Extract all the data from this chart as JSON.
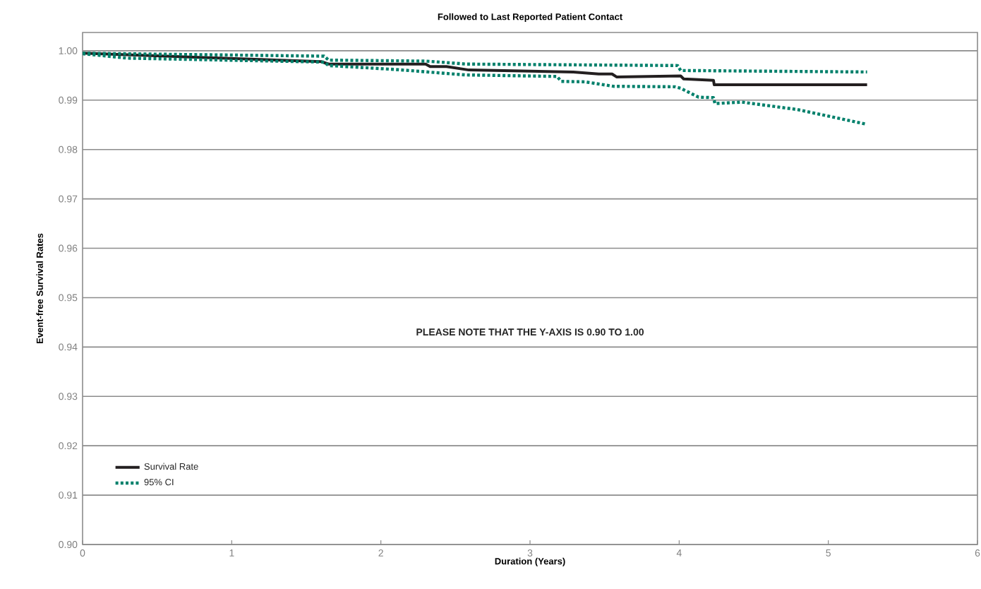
{
  "chart_data": {
    "type": "line",
    "title": "Followed to Last Reported Patient Contact",
    "xlabel": "Duration (Years)",
    "ylabel": "Event-free Survival Rates",
    "annotations": [
      "PLEASE NOTE THAT THE Y-AXIS IS 0.90 TO 1.00"
    ],
    "xlim": [
      0,
      6
    ],
    "xticks": [
      0,
      1,
      2,
      3,
      4,
      5,
      6
    ],
    "ylim": [
      0.9,
      1.0037
    ],
    "yticks": [
      {
        "value": 0.9,
        "label": "0.90"
      },
      {
        "value": 0.91,
        "label": "0.91"
      },
      {
        "value": 0.92,
        "label": "0.92"
      },
      {
        "value": 0.93,
        "label": "0.93"
      },
      {
        "value": 0.94,
        "label": "0.94"
      },
      {
        "value": 0.95,
        "label": "0.95"
      },
      {
        "value": 0.96,
        "label": "0.96"
      },
      {
        "value": 0.97,
        "label": "0.97"
      },
      {
        "value": 0.98,
        "label": "0.98"
      },
      {
        "value": 0.99,
        "label": "0.99"
      },
      {
        "value": 1.0,
        "label": "1.00"
      }
    ],
    "grid": "y",
    "legend": "bottom left",
    "series": [
      {
        "name": "Survival Rate",
        "color": "#231f20",
        "line_style": "solid",
        "x": [
          0,
          1.6,
          1.65,
          2.3,
          2.33,
          2.44,
          2.59,
          3.29,
          3.46,
          3.55,
          3.58,
          4.01,
          4.03,
          4.23,
          4.235,
          5.26
        ],
        "values": [
          0.9995,
          0.9978,
          0.9973,
          0.9973,
          0.9968,
          0.9968,
          0.9961,
          0.9957,
          0.9953,
          0.9953,
          0.9947,
          0.9949,
          0.9943,
          0.994,
          0.9931,
          0.9931
        ]
      },
      {
        "name": "95% CI",
        "color": "#00806b",
        "line_style": "dotted",
        "x": [
          0,
          1.62,
          1.65,
          2.3,
          2.4,
          2.57,
          3.99,
          4.01,
          5.26
        ],
        "values": [
          0.9995,
          0.9989,
          0.9981,
          0.9979,
          0.9977,
          0.9973,
          0.997,
          0.996,
          0.9957
        ]
      },
      {
        "color": "#00806b",
        "line_style": "dotted",
        "x": [
          0,
          0.3,
          1.62,
          1.65,
          2.1,
          2.57,
          3.18,
          3.21,
          3.37,
          3.56,
          3.97,
          4.01,
          4.13,
          4.23,
          4.24,
          4.42,
          4.79,
          5.26
        ],
        "values": [
          0.9994,
          0.9985,
          0.9977,
          0.997,
          0.9962,
          0.9951,
          0.9948,
          0.9938,
          0.9937,
          0.9928,
          0.9927,
          0.9924,
          0.9906,
          0.9905,
          0.9893,
          0.9896,
          0.9881,
          0.9851
        ]
      }
    ]
  }
}
